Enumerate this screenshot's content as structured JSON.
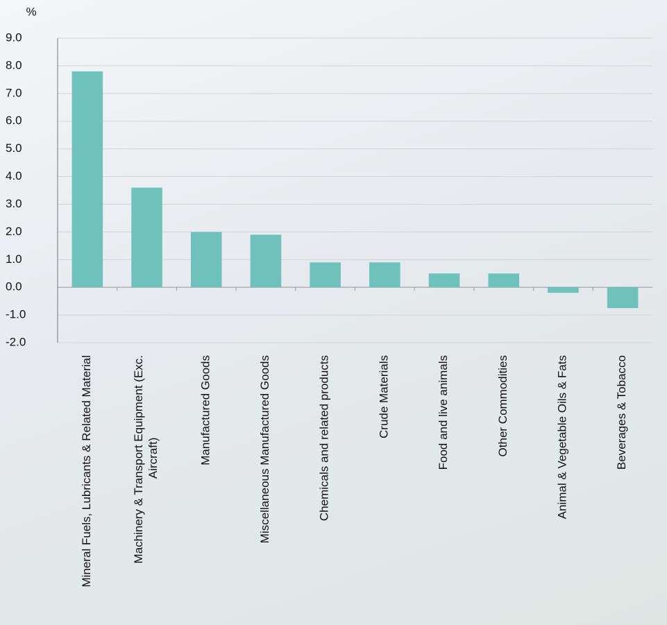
{
  "chart_data": {
    "type": "bar",
    "y_axis_label": "%",
    "categories": [
      "Mineral Fuels, Lubricants & Related Material",
      "Machinery & Transport Equipment (Exc. Aircraft)",
      "Manufactured Goods",
      "Miscellaneous Manufactured Goods",
      "Chemicals and related products",
      "Crude Materials",
      "Food and live animals",
      "Other Commodities",
      "Animal & Vegetable Oils & Fats",
      "Beverages & Tobacco"
    ],
    "values": [
      7.8,
      3.6,
      2.0,
      1.9,
      0.9,
      0.9,
      0.5,
      0.5,
      -0.2,
      -0.75
    ],
    "color": "#6fc1bb",
    "ylim": [
      -2,
      9
    ],
    "yticks": [
      {
        "value": -2,
        "label": "-2.0"
      },
      {
        "value": -1,
        "label": "-1.0"
      },
      {
        "value": 0,
        "label": "0.0"
      },
      {
        "value": 1,
        "label": "1.0"
      },
      {
        "value": 2,
        "label": "2.0"
      },
      {
        "value": 3,
        "label": "3.0"
      },
      {
        "value": 4,
        "label": "4.0"
      },
      {
        "value": 5,
        "label": "5.0"
      },
      {
        "value": 6,
        "label": "6.0"
      },
      {
        "value": 7,
        "label": "7.0"
      },
      {
        "value": 8,
        "label": "8.0"
      },
      {
        "value": 9,
        "label": "9.0"
      }
    ],
    "grid": true
  }
}
